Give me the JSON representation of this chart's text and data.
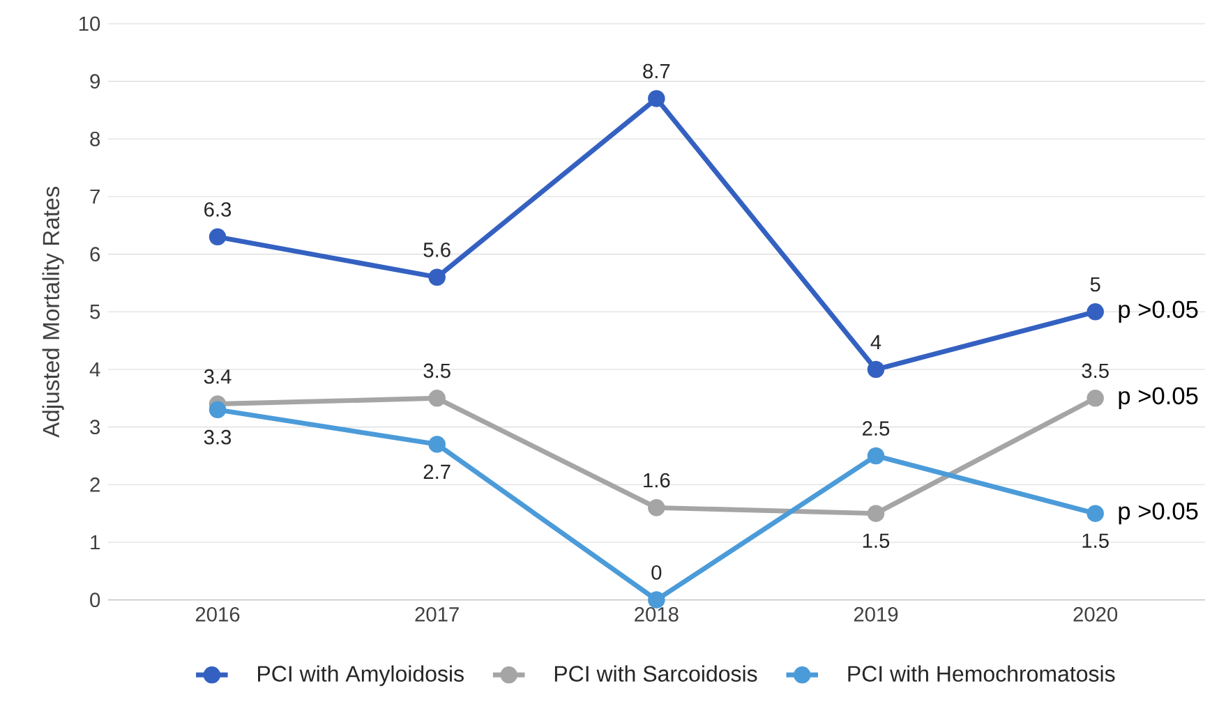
{
  "chart_data": {
    "type": "line",
    "ylabel": "Adjusted Mortality Rates",
    "categories": [
      "2016",
      "2017",
      "2018",
      "2019",
      "2020"
    ],
    "series": [
      {
        "name": "PCI with Amyloidosis",
        "color": "#3461c1",
        "values": [
          6.3,
          5.6,
          8.7,
          4,
          5
        ]
      },
      {
        "name": "PCI with Sarcoidosis",
        "color": "#a5a5a5",
        "values": [
          3.4,
          3.5,
          1.6,
          1.5,
          3.5
        ]
      },
      {
        "name": "PCI with Hemochromatosis",
        "color": "#4b9bd9",
        "values": [
          3.3,
          2.7,
          0,
          2.5,
          1.5
        ]
      }
    ],
    "ylim": [
      0,
      10
    ],
    "yticks": [
      0,
      1,
      2,
      3,
      4,
      5,
      6,
      7,
      8,
      9,
      10
    ],
    "grid": "y",
    "legend": "bottom",
    "marker": "circle",
    "line_style": "solid",
    "data_labels": true,
    "annotations": [
      {
        "text": "p >0.05",
        "x": "2020",
        "y": 5
      },
      {
        "text": "p >0.05",
        "x": "2020",
        "y": 3.5
      },
      {
        "text": "p >0.05",
        "x": "2020",
        "y": 1.5
      }
    ]
  }
}
